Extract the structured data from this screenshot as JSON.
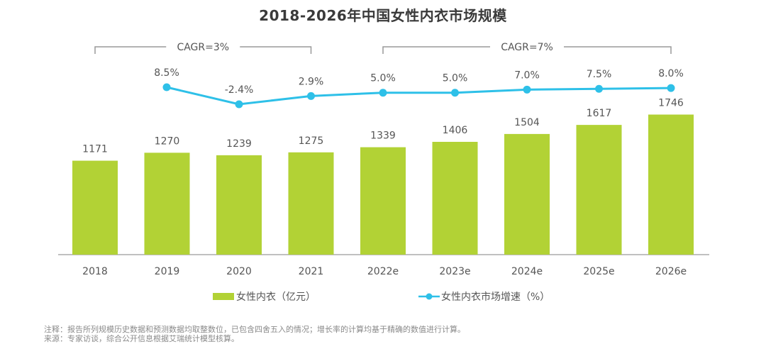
{
  "chart_data": {
    "type": "bar+line",
    "title": "2018-2026年中国女性内衣市场规模",
    "categories": [
      "2018",
      "2019",
      "2020",
      "2021",
      "2022e",
      "2023e",
      "2024e",
      "2025e",
      "2026e"
    ],
    "series": [
      {
        "name": "女性内衣（亿元）",
        "type": "bar",
        "color": "#b2d235",
        "values": [
          1171,
          1270,
          1239,
          1275,
          1339,
          1406,
          1504,
          1617,
          1746
        ],
        "labels": [
          "1171",
          "1270",
          "1239",
          "1275",
          "1339",
          "1406",
          "1504",
          "1617",
          "1746"
        ]
      },
      {
        "name": "女性内衣市场增速（%）",
        "type": "line",
        "color": "#2ec0e8",
        "values": [
          null,
          8.5,
          -2.4,
          2.9,
          5.0,
          5.0,
          7.0,
          7.5,
          8.0
        ],
        "labels": [
          "",
          "8.5%",
          "-2.4%",
          "2.9%",
          "5.0%",
          "5.0%",
          "7.0%",
          "7.5%",
          "8.0%"
        ]
      }
    ],
    "annotations": [
      {
        "text": "CAGR=3%",
        "from": "2018",
        "to": "2021"
      },
      {
        "text": "CAGR=7%",
        "from": "2022e",
        "to": "2026e"
      }
    ],
    "legend": [
      "女性内衣（亿元）",
      "女性内衣市场增速（%）"
    ],
    "legend_position": "bottom",
    "grid": false
  },
  "notes": {
    "note": "注释：报告所列规模历史数据和预测数据均取整数位，已包含四舍五入的情况；增长率的计算均基于精确的数值进行计算。",
    "source": "来源：专家访谈，综合公开信息根据艾瑞统计模型核算。"
  }
}
